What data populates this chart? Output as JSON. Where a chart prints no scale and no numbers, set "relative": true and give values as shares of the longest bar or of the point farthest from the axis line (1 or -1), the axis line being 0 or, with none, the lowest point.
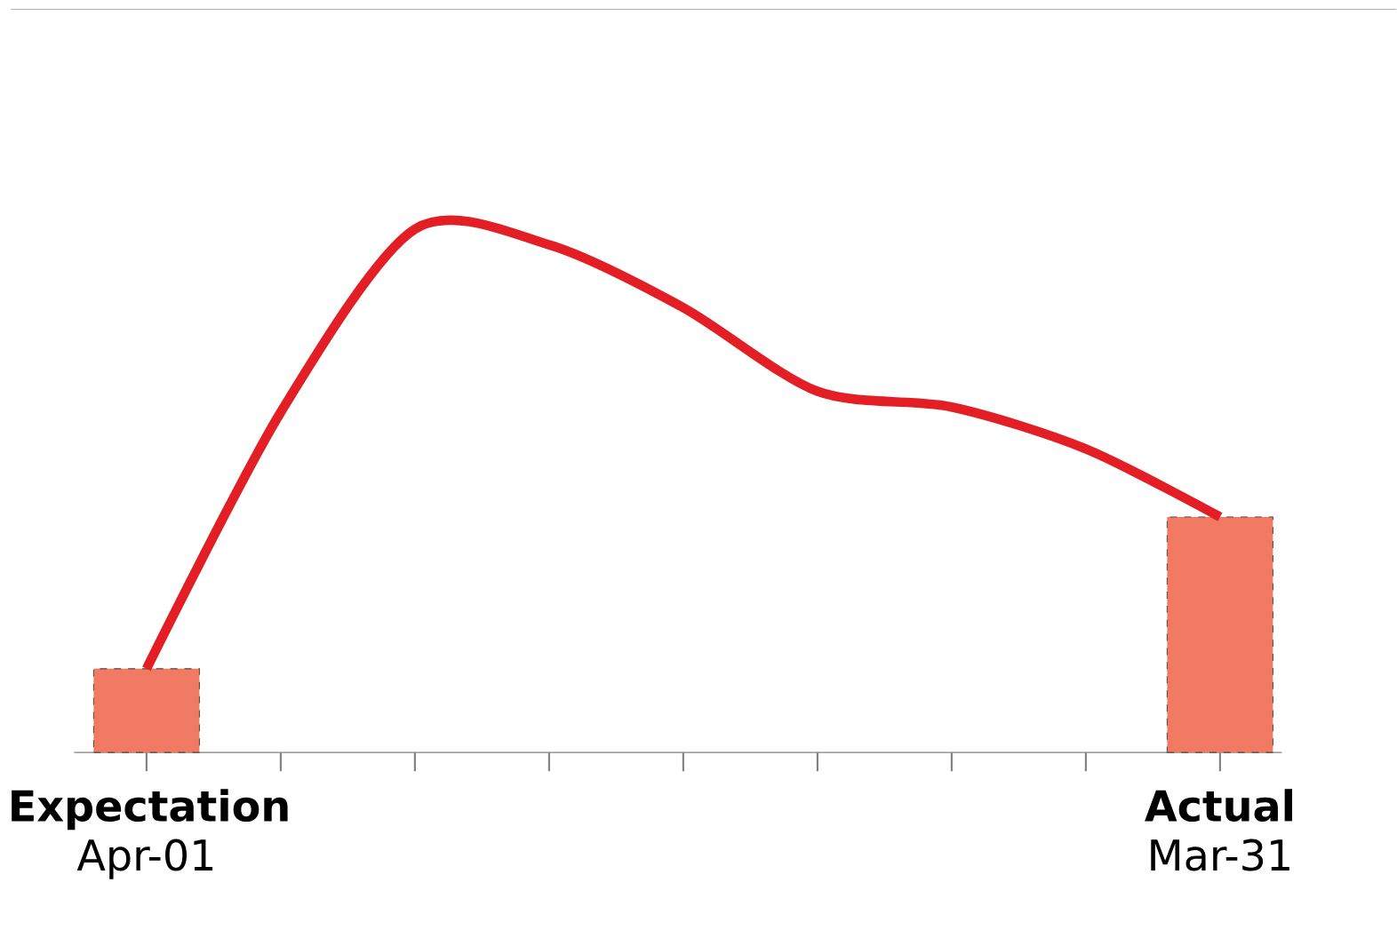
{
  "chart_data": {
    "type": "bar",
    "relative": true,
    "categories": [
      "**Expectation** Apr-01",
      null,
      null,
      null,
      null,
      null,
      null,
      null,
      "**Actual** Mar-31"
    ],
    "series": [
      {
        "color": "#f07a62",
        "values": [
          0.16,
          null,
          null,
          null,
          null,
          null,
          null,
          null,
          0.45
        ]
      },
      {
        "type": "line",
        "color": "#e31e24",
        "line_style": "solid",
        "marker": "none",
        "values": [
          0.16,
          0.65,
          1,
          0.97,
          0.85,
          0.69,
          0.66,
          0.58,
          0.45
        ]
      }
    ]
  }
}
